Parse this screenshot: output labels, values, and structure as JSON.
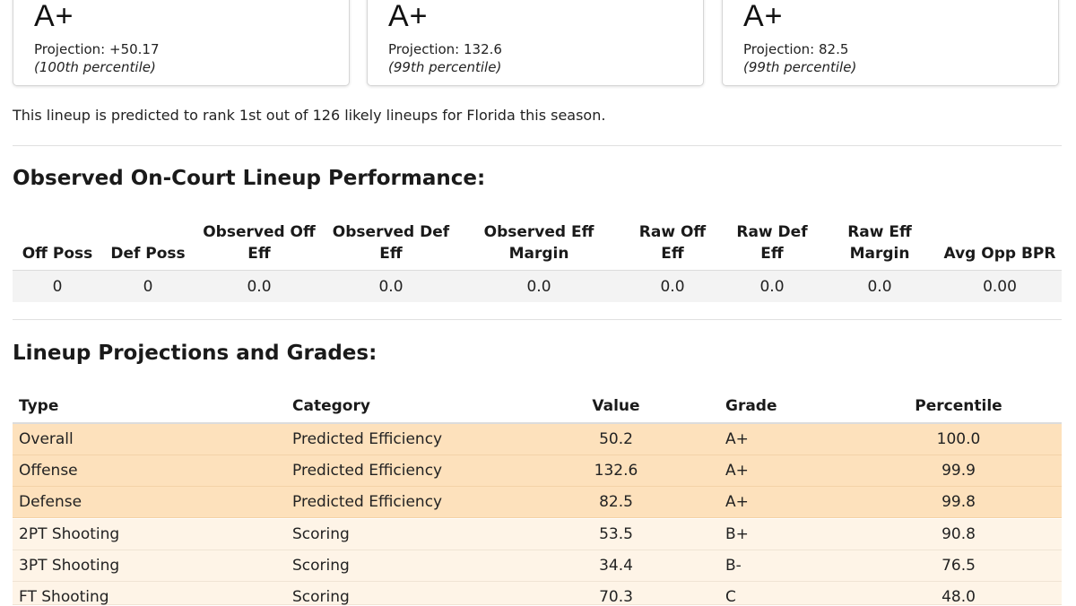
{
  "cards": [
    {
      "grade": "A+",
      "projection": "Projection: +50.17",
      "percentile": "(100th percentile)"
    },
    {
      "grade": "A+",
      "projection": "Projection: 132.6",
      "percentile": "(99th percentile)"
    },
    {
      "grade": "A+",
      "projection": "Projection: 82.5",
      "percentile": "(99th percentile)"
    }
  ],
  "summary": "This lineup is predicted to rank 1st out of 126 likely lineups for Florida this season.",
  "observed": {
    "title": "Observed On-Court Lineup Performance:",
    "headers": [
      [
        "Off Poss",
        ""
      ],
      [
        "Def Poss",
        ""
      ],
      [
        "Observed Off",
        "Eff"
      ],
      [
        "Observed Def",
        "Eff"
      ],
      [
        "Observed Eff",
        "Margin"
      ],
      [
        "Raw Off",
        "Eff"
      ],
      [
        "Raw Def",
        "Eff"
      ],
      [
        "Raw Eff",
        "Margin"
      ],
      [
        "Avg Opp BPR",
        ""
      ]
    ],
    "row": [
      "0",
      "0",
      "0.0",
      "0.0",
      "0.0",
      "0.0",
      "0.0",
      "0.0",
      "0.00"
    ]
  },
  "projections": {
    "title": "Lineup Projections and Grades:",
    "headers": [
      "Type",
      "Category",
      "Value",
      "Grade",
      "Percentile"
    ],
    "rows": [
      {
        "type": "Overall",
        "category": "Predicted Efficiency",
        "value": "50.2",
        "grade": "A+",
        "percentile": "100.0"
      },
      {
        "type": "Offense",
        "category": "Predicted Efficiency",
        "value": "132.6",
        "grade": "A+",
        "percentile": "99.9"
      },
      {
        "type": "Defense",
        "category": "Predicted Efficiency",
        "value": "82.5",
        "grade": "A+",
        "percentile": "99.8"
      },
      {
        "type": "2PT Shooting",
        "category": "Scoring",
        "value": "53.5",
        "grade": "B+",
        "percentile": "90.8"
      },
      {
        "type": "3PT Shooting",
        "category": "Scoring",
        "value": "34.4",
        "grade": "B-",
        "percentile": "76.5"
      },
      {
        "type": "FT Shooting",
        "category": "Scoring",
        "value": "70.3",
        "grade": "C",
        "percentile": "48.0"
      }
    ]
  }
}
